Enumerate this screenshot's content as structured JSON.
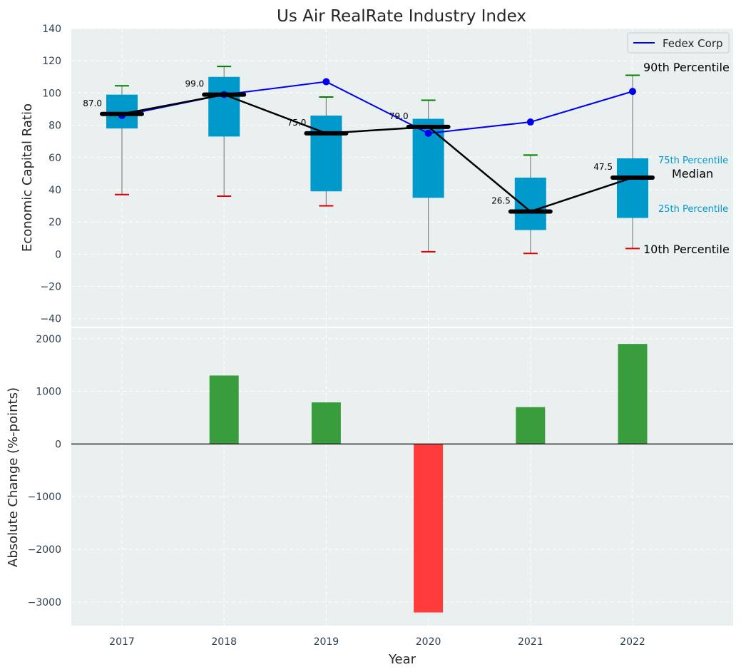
{
  "chart_data": [
    {
      "type": "box",
      "title": "Us Air RealRate Industry Index",
      "ylabel": "Economic Capital Ratio",
      "ylim": [
        -45,
        140
      ],
      "yticks": [
        -40,
        -20,
        0,
        20,
        40,
        60,
        80,
        100,
        120,
        140
      ],
      "ytick_labels": [
        "−40",
        "−20",
        "0",
        "20",
        "40",
        "60",
        "80",
        "100",
        "120",
        "140"
      ],
      "categories": [
        "2017",
        "2018",
        "2019",
        "2020",
        "2021",
        "2022"
      ],
      "percentile_10": [
        37,
        36,
        30,
        1.5,
        0.5,
        3.5
      ],
      "percentile_25": [
        78,
        73,
        39,
        35,
        15,
        22.5
      ],
      "median": [
        87.0,
        99.0,
        75.0,
        79.0,
        26.5,
        47.5
      ],
      "median_labels": [
        "87.0",
        "99.0",
        "75.0",
        "79.0",
        "26.5",
        "47.5"
      ],
      "percentile_75": [
        99,
        110,
        86,
        84,
        47.5,
        59.5
      ],
      "percentile_90": [
        104.5,
        116.5,
        97.5,
        95.5,
        61.5,
        111
      ],
      "series": [
        {
          "name": "Fedex Corp",
          "values": [
            86,
            99,
            107,
            75,
            82,
            101
          ]
        }
      ],
      "legend": {
        "position": "top-right",
        "entries": [
          "Fedex Corp"
        ]
      },
      "annotations": {
        "p90": "90th Percentile",
        "p75": "75th Percentile",
        "median": "Median",
        "p25": "25th Percentile",
        "p10": "10th Percentile"
      },
      "grid": true
    },
    {
      "type": "bar",
      "ylabel": "Absolute Change (%-points)",
      "xlabel": "Year",
      "ylim": [
        -3450,
        2200
      ],
      "yticks": [
        -3000,
        -2000,
        -1000,
        0,
        1000,
        2000
      ],
      "ytick_labels": [
        "−3000",
        "−2000",
        "−1000",
        "0",
        "1000",
        "2000"
      ],
      "categories": [
        "2017",
        "2018",
        "2019",
        "2020",
        "2021",
        "2022"
      ],
      "values": [
        0,
        1300,
        790,
        -3200,
        700,
        1900
      ],
      "grid": true
    }
  ],
  "colors": {
    "background": "#eaeff0",
    "box": "#0099cc",
    "median": "#000000",
    "series_line": "#0000ee",
    "whisker_top": "#008000",
    "whisker_bottom": "#dd0000",
    "bar_positive": "#3a9d3d",
    "bar_negative": "#ff3b3b",
    "tick_text": "#2c3e50"
  }
}
